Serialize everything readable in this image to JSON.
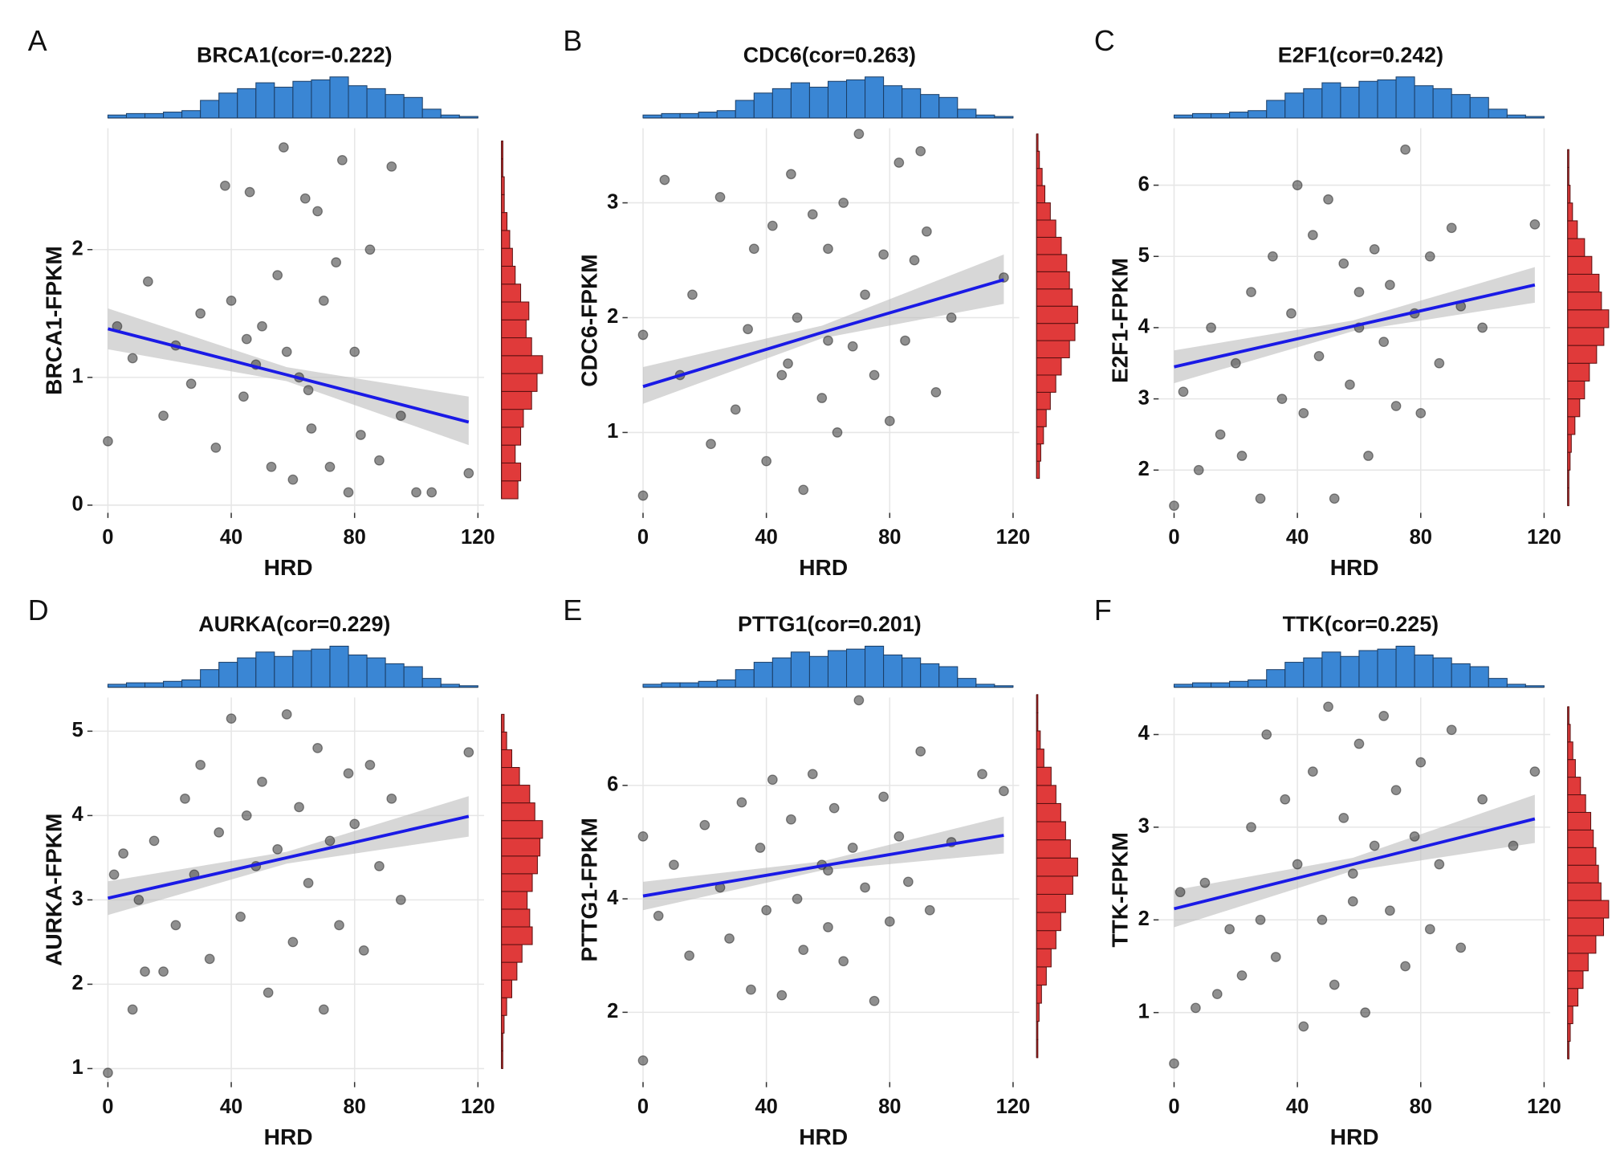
{
  "chart_data": [
    {
      "type": "scatter",
      "panel": "A",
      "title": "BRCA1(cor=-0.222)",
      "xlabel": "HRD",
      "ylabel": "BRCA1-FPKM",
      "x": [
        0,
        3,
        8,
        13,
        18,
        22,
        27,
        30,
        35,
        38,
        40,
        44,
        46,
        48,
        50,
        53,
        55,
        57,
        60,
        62,
        64,
        66,
        68,
        70,
        72,
        74,
        76,
        78,
        80,
        82,
        85,
        88,
        92,
        95,
        100,
        105,
        117,
        45,
        58,
        65
      ],
      "y": [
        0.5,
        1.4,
        1.15,
        1.75,
        0.7,
        1.25,
        0.95,
        1.5,
        0.45,
        2.5,
        1.6,
        0.85,
        2.45,
        1.1,
        1.4,
        0.3,
        1.8,
        2.8,
        0.2,
        1.0,
        2.4,
        0.6,
        2.3,
        1.6,
        0.3,
        1.9,
        2.7,
        0.1,
        1.2,
        0.55,
        2.0,
        0.35,
        2.65,
        0.7,
        0.1,
        0.1,
        0.25,
        1.3,
        1.2,
        0.9
      ],
      "fit": {
        "x": [
          0,
          58,
          117
        ],
        "y": [
          1.38,
          1.02,
          0.65
        ],
        "lower": [
          1.22,
          0.97,
          0.47
        ],
        "upper": [
          1.54,
          1.08,
          0.85
        ]
      },
      "x_hist": {
        "bins": [
          0,
          6,
          12,
          18,
          24,
          30,
          36,
          42,
          48,
          54,
          60,
          66,
          72,
          78,
          84,
          90,
          96,
          102,
          108,
          114,
          120
        ],
        "counts": [
          2,
          3,
          3,
          4,
          5,
          12,
          17,
          20,
          24,
          21,
          25,
          26,
          28,
          22,
          20,
          16,
          14,
          6,
          2,
          1
        ]
      },
      "y_hist": {
        "bins": [
          0.05,
          0.19,
          0.33,
          0.47,
          0.61,
          0.75,
          0.89,
          1.03,
          1.17,
          1.31,
          1.45,
          1.59,
          1.73,
          1.87,
          2.01,
          2.15,
          2.29,
          2.43,
          2.57,
          2.71,
          2.85
        ],
        "counts": [
          12,
          14,
          10,
          14,
          16,
          22,
          26,
          30,
          22,
          18,
          20,
          14,
          10,
          8,
          6,
          4,
          2,
          2,
          1,
          1
        ]
      },
      "xlim": [
        -5,
        122
      ],
      "ylim": [
        -0.06,
        2.95
      ],
      "xticks": [
        0,
        40,
        80,
        120
      ],
      "yticks": [
        0,
        1,
        2
      ],
      "grid": true,
      "point_color": "#333333",
      "line_color": "#1a1ae6",
      "x_hist_color": "#3a86d4",
      "y_hist_color": "#e03a3a"
    },
    {
      "type": "scatter",
      "panel": "B",
      "title": "CDC6(cor=0.263)",
      "xlabel": "HRD",
      "ylabel": "CDC6-FPKM",
      "x": [
        0,
        0,
        7,
        12,
        16,
        22,
        25,
        30,
        34,
        36,
        40,
        42,
        45,
        48,
        50,
        52,
        55,
        58,
        60,
        63,
        65,
        68,
        70,
        72,
        75,
        78,
        80,
        83,
        85,
        88,
        90,
        92,
        95,
        100,
        117,
        60,
        47
      ],
      "y": [
        0.45,
        1.85,
        3.2,
        1.5,
        2.2,
        0.9,
        3.05,
        1.2,
        1.9,
        2.6,
        0.75,
        2.8,
        1.5,
        3.25,
        2.0,
        0.5,
        2.9,
        1.3,
        2.6,
        1.0,
        3.0,
        1.75,
        3.6,
        2.2,
        1.5,
        2.55,
        1.1,
        3.35,
        1.8,
        2.5,
        3.45,
        2.75,
        1.35,
        2.0,
        2.35,
        1.8,
        1.6
      ],
      "fit": {
        "x": [
          0,
          58,
          117
        ],
        "y": [
          1.4,
          1.87,
          2.33
        ],
        "lower": [
          1.25,
          1.82,
          2.12
        ],
        "upper": [
          1.57,
          1.93,
          2.55
        ]
      },
      "x_hist": {
        "bins": [
          0,
          6,
          12,
          18,
          24,
          30,
          36,
          42,
          48,
          54,
          60,
          66,
          72,
          78,
          84,
          90,
          96,
          102,
          108,
          114,
          120
        ],
        "counts": [
          2,
          3,
          3,
          4,
          5,
          12,
          17,
          20,
          24,
          21,
          25,
          26,
          28,
          22,
          20,
          16,
          14,
          6,
          2,
          1
        ]
      },
      "y_hist": {
        "bins": [
          0.6,
          0.75,
          0.9,
          1.05,
          1.2,
          1.35,
          1.5,
          1.65,
          1.8,
          1.95,
          2.1,
          2.25,
          2.4,
          2.55,
          2.7,
          2.85,
          3.0,
          3.15,
          3.3,
          3.45,
          3.6
        ],
        "counts": [
          2,
          3,
          5,
          7,
          10,
          14,
          18,
          24,
          28,
          30,
          26,
          24,
          22,
          18,
          14,
          10,
          6,
          4,
          2,
          1
        ]
      },
      "xlim": [
        -5,
        122
      ],
      "ylim": [
        0.3,
        3.65
      ],
      "xticks": [
        0,
        40,
        80,
        120
      ],
      "yticks": [
        1,
        2,
        3
      ],
      "grid": true,
      "point_color": "#333333",
      "line_color": "#1a1ae6",
      "x_hist_color": "#3a86d4",
      "y_hist_color": "#e03a3a"
    },
    {
      "type": "scatter",
      "panel": "C",
      "title": "E2F1(cor=0.242)",
      "xlabel": "HRD",
      "ylabel": "E2F1-FPKM",
      "x": [
        0,
        3,
        8,
        12,
        15,
        20,
        22,
        25,
        28,
        32,
        35,
        38,
        40,
        42,
        45,
        47,
        50,
        52,
        55,
        57,
        60,
        63,
        65,
        68,
        70,
        72,
        75,
        78,
        80,
        83,
        86,
        90,
        93,
        100,
        117,
        60
      ],
      "y": [
        1.5,
        3.1,
        2.0,
        4.0,
        2.5,
        3.5,
        2.2,
        4.5,
        1.6,
        5.0,
        3.0,
        4.2,
        6.0,
        2.8,
        5.3,
        3.6,
        5.8,
        1.6,
        4.9,
        3.2,
        4.5,
        2.2,
        5.1,
        3.8,
        4.6,
        2.9,
        6.5,
        4.2,
        2.8,
        5.0,
        3.5,
        5.4,
        4.3,
        4.0,
        5.45,
        4.0
      ],
      "fit": {
        "x": [
          0,
          58,
          117
        ],
        "y": [
          3.45,
          4.02,
          4.6
        ],
        "lower": [
          3.22,
          3.95,
          4.35
        ],
        "upper": [
          3.68,
          4.1,
          4.85
        ]
      },
      "x_hist": {
        "bins": [
          0,
          6,
          12,
          18,
          24,
          30,
          36,
          42,
          48,
          54,
          60,
          66,
          72,
          78,
          84,
          90,
          96,
          102,
          108,
          114,
          120
        ],
        "counts": [
          2,
          3,
          3,
          4,
          5,
          12,
          17,
          20,
          24,
          21,
          25,
          26,
          28,
          22,
          20,
          16,
          14,
          6,
          2,
          1
        ]
      },
      "y_hist": {
        "bins": [
          1.5,
          1.75,
          2.0,
          2.25,
          2.5,
          2.75,
          3.0,
          3.25,
          3.5,
          3.75,
          4.0,
          4.25,
          4.5,
          4.75,
          5.0,
          5.25,
          5.5,
          5.75,
          6.0,
          6.25,
          6.5
        ],
        "counts": [
          1,
          1,
          2,
          3,
          6,
          10,
          14,
          18,
          24,
          30,
          34,
          28,
          26,
          20,
          14,
          8,
          4,
          2,
          1,
          1
        ]
      },
      "xlim": [
        -5,
        122
      ],
      "ylim": [
        1.4,
        6.8
      ],
      "xticks": [
        0,
        40,
        80,
        120
      ],
      "yticks": [
        2,
        3,
        4,
        5,
        6
      ],
      "grid": true,
      "point_color": "#333333",
      "line_color": "#1a1ae6",
      "x_hist_color": "#3a86d4",
      "y_hist_color": "#e03a3a"
    },
    {
      "type": "scatter",
      "panel": "D",
      "title": "AURKA(cor=0.229)",
      "xlabel": "HRD",
      "ylabel": "AURKA-FPKM",
      "x": [
        0,
        2,
        5,
        8,
        10,
        12,
        15,
        18,
        22,
        25,
        28,
        30,
        33,
        36,
        40,
        43,
        45,
        48,
        50,
        52,
        55,
        58,
        60,
        62,
        65,
        68,
        70,
        72,
        75,
        78,
        80,
        83,
        85,
        88,
        92,
        95,
        117
      ],
      "y": [
        0.95,
        3.3,
        3.55,
        1.7,
        3.0,
        2.15,
        3.7,
        2.15,
        2.7,
        4.2,
        3.3,
        4.6,
        2.3,
        3.8,
        5.15,
        2.8,
        4.0,
        3.4,
        4.4,
        1.9,
        3.6,
        5.2,
        2.5,
        4.1,
        3.2,
        4.8,
        1.7,
        3.7,
        2.7,
        4.5,
        3.9,
        2.4,
        4.6,
        3.4,
        4.2,
        3.0,
        4.75
      ],
      "fit": {
        "x": [
          0,
          58,
          117
        ],
        "y": [
          3.02,
          3.5,
          3.99
        ],
        "lower": [
          2.82,
          3.43,
          3.75
        ],
        "upper": [
          3.22,
          3.57,
          4.23
        ]
      },
      "x_hist": {
        "bins": [
          0,
          6,
          12,
          18,
          24,
          30,
          36,
          42,
          48,
          54,
          60,
          66,
          72,
          78,
          84,
          90,
          96,
          102,
          108,
          114,
          120
        ],
        "counts": [
          2,
          3,
          3,
          4,
          5,
          12,
          17,
          20,
          24,
          21,
          25,
          26,
          28,
          22,
          20,
          16,
          14,
          6,
          2,
          1
        ]
      },
      "y_hist": {
        "bins": [
          1.0,
          1.21,
          1.42,
          1.63,
          1.84,
          2.05,
          2.26,
          2.47,
          2.68,
          2.89,
          3.1,
          3.31,
          3.52,
          3.73,
          3.94,
          4.15,
          4.36,
          4.57,
          4.78,
          4.99,
          5.2
        ],
        "counts": [
          1,
          1,
          2,
          4,
          8,
          12,
          16,
          24,
          22,
          20,
          24,
          28,
          30,
          32,
          26,
          22,
          14,
          8,
          4,
          2
        ]
      },
      "xlim": [
        -5,
        122
      ],
      "ylim": [
        0.84,
        5.4
      ],
      "xticks": [
        0,
        40,
        80,
        120
      ],
      "yticks": [
        1,
        2,
        3,
        4,
        5
      ],
      "grid": true,
      "point_color": "#333333",
      "line_color": "#1a1ae6",
      "x_hist_color": "#3a86d4",
      "y_hist_color": "#e03a3a"
    },
    {
      "type": "scatter",
      "panel": "E",
      "title": "PTTG1(cor=0.201)",
      "xlabel": "HRD",
      "ylabel": "PTTG1-FPKM",
      "x": [
        0,
        0,
        5,
        10,
        15,
        20,
        25,
        28,
        32,
        35,
        38,
        40,
        42,
        45,
        48,
        50,
        52,
        55,
        58,
        60,
        62,
        65,
        68,
        70,
        72,
        75,
        78,
        80,
        83,
        86,
        90,
        93,
        100,
        110,
        117,
        60
      ],
      "y": [
        1.15,
        5.1,
        3.7,
        4.6,
        3.0,
        5.3,
        4.2,
        3.3,
        5.7,
        2.4,
        4.9,
        3.8,
        6.1,
        2.3,
        5.4,
        4.0,
        3.1,
        6.2,
        4.6,
        3.5,
        5.6,
        2.9,
        4.9,
        7.5,
        4.2,
        2.2,
        5.8,
        3.6,
        5.1,
        4.3,
        6.6,
        3.8,
        5.0,
        6.2,
        5.9,
        4.5
      ],
      "fit": {
        "x": [
          0,
          58,
          117
        ],
        "y": [
          4.05,
          4.58,
          5.12
        ],
        "lower": [
          3.8,
          4.5,
          4.8
        ],
        "upper": [
          4.3,
          4.66,
          5.45
        ]
      },
      "x_hist": {
        "bins": [
          0,
          6,
          12,
          18,
          24,
          30,
          36,
          42,
          48,
          54,
          60,
          66,
          72,
          78,
          84,
          90,
          96,
          102,
          108,
          114,
          120
        ],
        "counts": [
          2,
          3,
          3,
          4,
          5,
          12,
          17,
          20,
          24,
          21,
          25,
          26,
          28,
          22,
          20,
          16,
          14,
          6,
          2,
          1
        ]
      },
      "y_hist": {
        "bins": [
          1.2,
          1.52,
          1.84,
          2.16,
          2.48,
          2.8,
          3.12,
          3.44,
          3.76,
          4.08,
          4.4,
          4.72,
          5.04,
          5.36,
          5.68,
          6.0,
          6.32,
          6.64,
          6.96,
          7.28,
          7.6
        ],
        "counts": [
          1,
          1,
          2,
          4,
          8,
          12,
          16,
          20,
          24,
          30,
          34,
          28,
          24,
          20,
          16,
          12,
          6,
          3,
          1,
          1
        ]
      },
      "xlim": [
        -5,
        122
      ],
      "ylim": [
        0.77,
        7.55
      ],
      "xticks": [
        0,
        40,
        80,
        120
      ],
      "yticks": [
        2,
        4,
        6
      ],
      "grid": true,
      "point_color": "#333333",
      "line_color": "#1a1ae6",
      "x_hist_color": "#3a86d4",
      "y_hist_color": "#e03a3a"
    },
    {
      "type": "scatter",
      "panel": "F",
      "title": "TTK(cor=0.225)",
      "xlabel": "HRD",
      "ylabel": "TTK-FPKM",
      "x": [
        0,
        2,
        7,
        10,
        14,
        18,
        22,
        25,
        28,
        30,
        33,
        36,
        40,
        42,
        45,
        48,
        50,
        52,
        55,
        58,
        60,
        62,
        65,
        68,
        70,
        72,
        75,
        78,
        80,
        83,
        86,
        90,
        93,
        100,
        110,
        117,
        58
      ],
      "y": [
        0.45,
        2.3,
        1.05,
        2.4,
        1.2,
        1.9,
        1.4,
        3.0,
        2.0,
        4.0,
        1.6,
        3.3,
        2.6,
        0.85,
        3.6,
        2.0,
        4.3,
        1.3,
        3.1,
        2.5,
        3.9,
        1.0,
        2.8,
        4.2,
        2.1,
        3.4,
        1.5,
        2.9,
        3.7,
        1.9,
        2.6,
        4.05,
        1.7,
        3.3,
        2.8,
        3.6,
        2.2
      ],
      "fit": {
        "x": [
          0,
          58,
          117
        ],
        "y": [
          2.12,
          2.6,
          3.09
        ],
        "lower": [
          1.92,
          2.53,
          2.83
        ],
        "upper": [
          2.32,
          2.67,
          3.35
        ]
      },
      "x_hist": {
        "bins": [
          0,
          6,
          12,
          18,
          24,
          30,
          36,
          42,
          48,
          54,
          60,
          66,
          72,
          78,
          84,
          90,
          96,
          102,
          108,
          114,
          120
        ],
        "counts": [
          2,
          3,
          3,
          4,
          5,
          12,
          17,
          20,
          24,
          21,
          25,
          26,
          28,
          22,
          20,
          16,
          14,
          6,
          2,
          1
        ]
      },
      "y_hist": {
        "bins": [
          0.5,
          0.69,
          0.88,
          1.07,
          1.26,
          1.45,
          1.64,
          1.83,
          2.02,
          2.21,
          2.4,
          2.59,
          2.78,
          2.97,
          3.16,
          3.35,
          3.54,
          3.73,
          3.92,
          4.11,
          4.3
        ],
        "counts": [
          1,
          2,
          4,
          8,
          12,
          16,
          22,
          28,
          32,
          26,
          24,
          22,
          20,
          18,
          14,
          10,
          6,
          4,
          2,
          1
        ]
      },
      "xlim": [
        -5,
        122
      ],
      "ylim": [
        0.25,
        4.4
      ],
      "xticks": [
        0,
        40,
        80,
        120
      ],
      "yticks": [
        1,
        2,
        3,
        4
      ],
      "grid": true,
      "point_color": "#333333",
      "line_color": "#1a1ae6",
      "x_hist_color": "#3a86d4",
      "y_hist_color": "#e03a3a"
    }
  ]
}
